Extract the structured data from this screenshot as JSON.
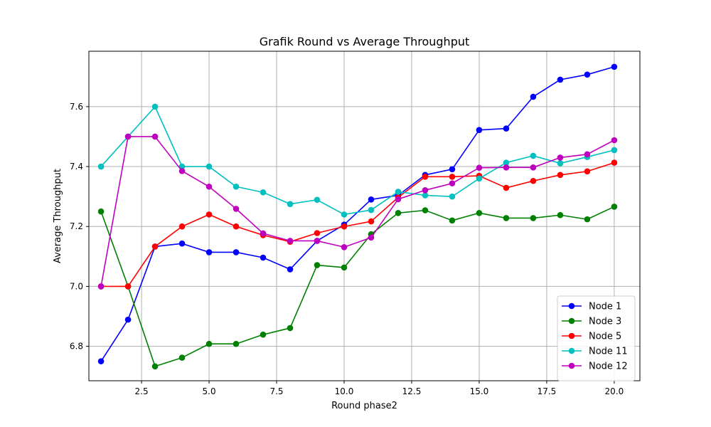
{
  "chart_data": {
    "type": "line",
    "title": "Grafik Round vs Average Throughput",
    "xlabel": "Round phase2",
    "ylabel": "Average Throughput",
    "xlim": [
      0.55,
      20.95
    ],
    "ylim": [
      6.685,
      7.785
    ],
    "x_ticks": [
      2.5,
      5.0,
      7.5,
      10.0,
      12.5,
      15.0,
      17.5,
      20.0
    ],
    "x_tick_labels": [
      "2.5",
      "5.0",
      "7.5",
      "10.0",
      "12.5",
      "15.0",
      "17.5",
      "20.0"
    ],
    "y_ticks": [
      6.8,
      7.0,
      7.2,
      7.4,
      7.6
    ],
    "y_tick_labels": [
      "6.8",
      "7.0",
      "7.2",
      "7.4",
      "7.6"
    ],
    "grid": true,
    "legend_position": "bottom-right",
    "x": [
      1,
      2,
      3,
      4,
      5,
      6,
      7,
      8,
      9,
      10,
      11,
      12,
      13,
      14,
      15,
      16,
      17,
      18,
      19,
      20
    ],
    "series": [
      {
        "name": "Node 1",
        "color": "#0000ff",
        "values": [
          6.75,
          6.889,
          7.133,
          7.143,
          7.114,
          7.114,
          7.096,
          7.057,
          7.152,
          7.206,
          7.29,
          7.304,
          7.372,
          7.391,
          7.522,
          7.527,
          7.633,
          7.69,
          7.707,
          7.733
        ]
      },
      {
        "name": "Node 3",
        "color": "#008000",
        "values": [
          7.25,
          7.0,
          6.733,
          6.762,
          6.808,
          6.808,
          6.839,
          6.861,
          7.071,
          7.063,
          7.174,
          7.245,
          7.254,
          7.22,
          7.245,
          7.228,
          7.228,
          7.238,
          7.224,
          7.266
        ]
      },
      {
        "name": "Node 5",
        "color": "#ff0000",
        "values": [
          7.0,
          7.0,
          7.133,
          7.2,
          7.24,
          7.2,
          7.171,
          7.149,
          7.178,
          7.2,
          7.217,
          7.297,
          7.366,
          7.366,
          7.369,
          7.329,
          7.352,
          7.372,
          7.384,
          7.413
        ]
      },
      {
        "name": "Node 11",
        "color": "#00bfbf",
        "values": [
          7.4,
          7.5,
          7.6,
          7.4,
          7.4,
          7.333,
          7.314,
          7.275,
          7.289,
          7.24,
          7.255,
          7.316,
          7.304,
          7.3,
          7.36,
          7.413,
          7.436,
          7.411,
          7.432,
          7.455
        ]
      },
      {
        "name": "Node 12",
        "color": "#bf00bf",
        "values": [
          7.0,
          7.5,
          7.5,
          7.385,
          7.333,
          7.259,
          7.177,
          7.152,
          7.152,
          7.131,
          7.163,
          7.291,
          7.321,
          7.344,
          7.396,
          7.397,
          7.397,
          7.43,
          7.441,
          7.488
        ]
      }
    ]
  }
}
